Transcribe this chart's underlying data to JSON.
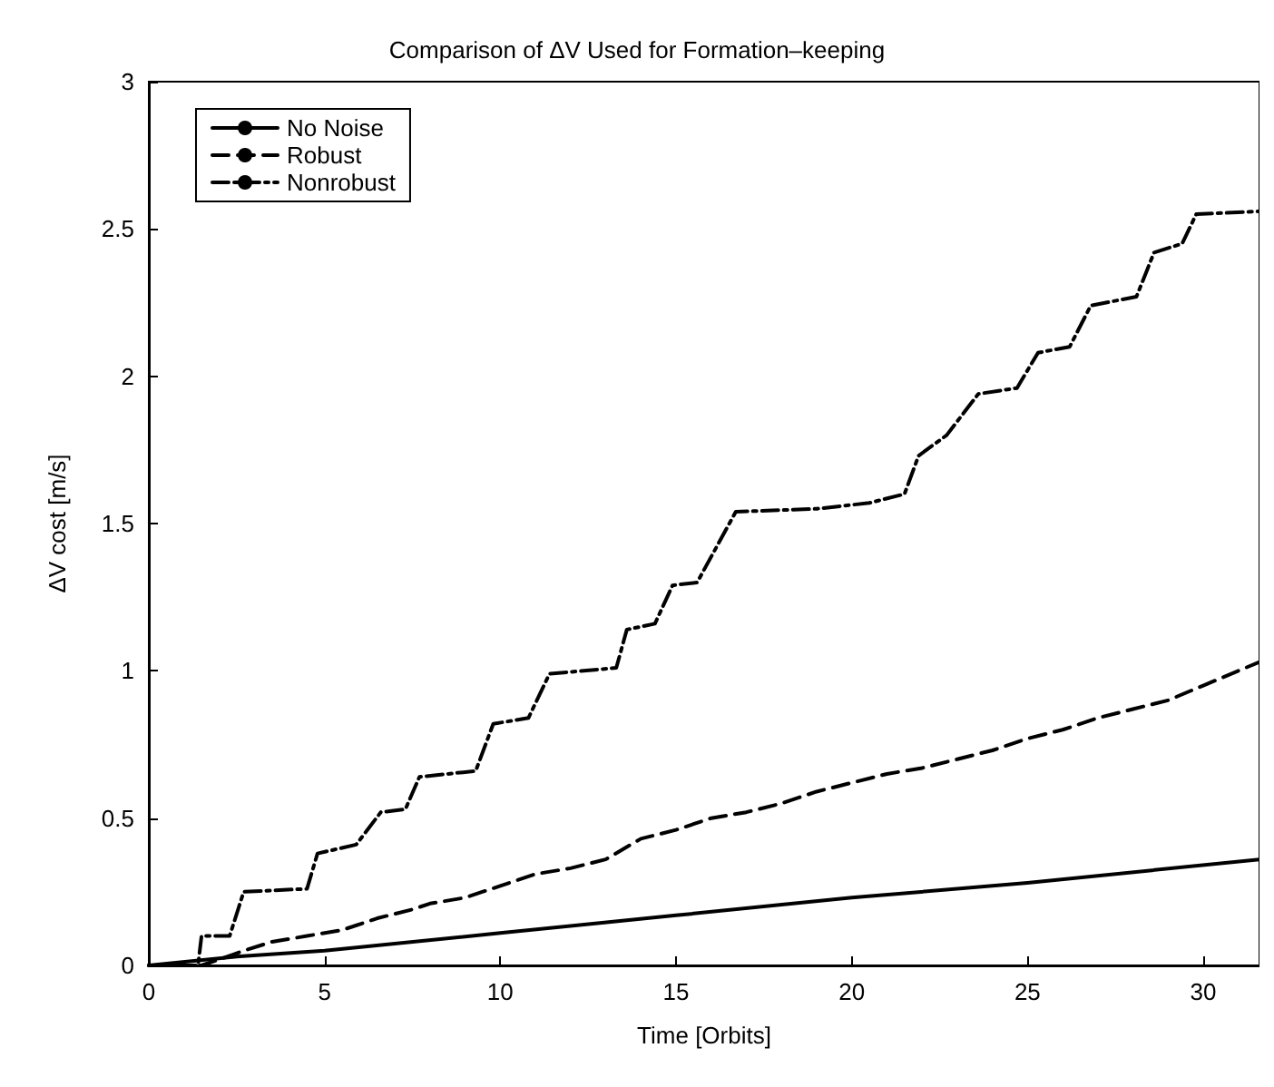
{
  "chart_data": {
    "type": "line",
    "title": "Comparison of ΔV Used for Formation–keeping",
    "xlabel": "Time [Orbits]",
    "ylabel": "ΔV cost [m/s]",
    "xlim": [
      0,
      31.6
    ],
    "xticks": [
      0,
      5,
      10,
      15,
      20,
      25,
      30
    ],
    "ylim": [
      0,
      3
    ],
    "yticks": [
      0,
      0.5,
      1,
      1.5,
      2,
      2.5,
      3
    ],
    "grid": false,
    "legend": "top left",
    "marker": "none",
    "series": [
      {
        "name": "No Noise",
        "color": "#000000",
        "line_style": "solid",
        "x": [
          0,
          2.5,
          5,
          10,
          15,
          20,
          25,
          31.6
        ],
        "values": [
          0,
          0.03,
          0.05,
          0.11,
          0.17,
          0.23,
          0.28,
          0.36
        ]
      },
      {
        "name": "Robust",
        "color": "#000000",
        "line_style": "dashed",
        "x": [
          0,
          1.5,
          2,
          2.7,
          3.5,
          4.5,
          5.5,
          6.5,
          7.5,
          8,
          9,
          10,
          11,
          12,
          13,
          14,
          15,
          16,
          17,
          18,
          19,
          20,
          21,
          22,
          23,
          24,
          25,
          26,
          27,
          28,
          29,
          30,
          31.6
        ],
        "values": [
          0,
          0,
          0.02,
          0.05,
          0.08,
          0.1,
          0.12,
          0.16,
          0.19,
          0.21,
          0.23,
          0.27,
          0.31,
          0.33,
          0.36,
          0.43,
          0.46,
          0.5,
          0.52,
          0.55,
          0.59,
          0.62,
          0.65,
          0.67,
          0.7,
          0.73,
          0.77,
          0.8,
          0.84,
          0.87,
          0.9,
          0.95,
          1.03
        ]
      },
      {
        "name": "Nonrobust",
        "color": "#000000",
        "line_style": "dashdot",
        "x": [
          0,
          1.4,
          1.5,
          2.3,
          2.7,
          4.5,
          4.8,
          5.9,
          6.6,
          7.3,
          7.7,
          9.3,
          9.8,
          10.8,
          11.4,
          13.3,
          13.6,
          14.4,
          14.9,
          15.6,
          16.7,
          19,
          20.5,
          21.5,
          21.9,
          22.7,
          23.6,
          24.7,
          25.3,
          26.2,
          26.8,
          28.1,
          28.6,
          29.4,
          29.8,
          31.6
        ],
        "values": [
          0,
          0,
          0.1,
          0.1,
          0.25,
          0.26,
          0.38,
          0.41,
          0.52,
          0.53,
          0.64,
          0.66,
          0.82,
          0.84,
          0.99,
          1.01,
          1.14,
          1.16,
          1.29,
          1.3,
          1.54,
          1.55,
          1.57,
          1.6,
          1.73,
          1.8,
          1.94,
          1.96,
          2.08,
          2.1,
          2.24,
          2.27,
          2.42,
          2.45,
          2.55,
          2.56
        ]
      }
    ]
  }
}
